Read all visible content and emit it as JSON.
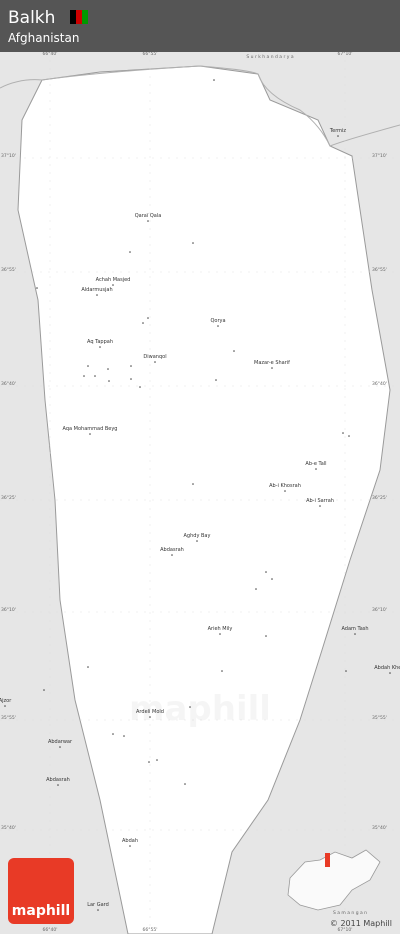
{
  "header": {
    "title": "Balkh",
    "subtitle": "Afghanistan"
  },
  "water": [
    "S u r k h a n d a r y a",
    "S a m a n g a n"
  ],
  "places": [
    "Termiz",
    "Qaraï Qala",
    "Achah Masjed",
    "Aldarmusjah",
    "Aq Tappah",
    "Diwanqol",
    "Qorya",
    "Mazar-e Sharif",
    "Aqa Mohammad Beyg",
    "Ab-e Tall",
    "Ab-i Khosrah",
    "Ab-i Sarrah",
    "Aghdy Bay",
    "Abdasrah",
    "Arieh Mily",
    "Adam Tash",
    "Abdah Kheyl",
    "Ardeli Mold",
    "Abdarwar",
    "Abdasrah",
    "Ajzor",
    "Abdah",
    "Lar Gard"
  ],
  "coordinates": {
    "longitudes": [
      "66°40'",
      "66°55'",
      "67°10'"
    ],
    "latitudes": [
      "37°10'",
      "36°55'",
      "36°40'",
      "36°25'",
      "36°10'",
      "35°55'",
      "35°40'"
    ]
  },
  "logo": "maphill",
  "copyright": "© 2011 Maphill"
}
